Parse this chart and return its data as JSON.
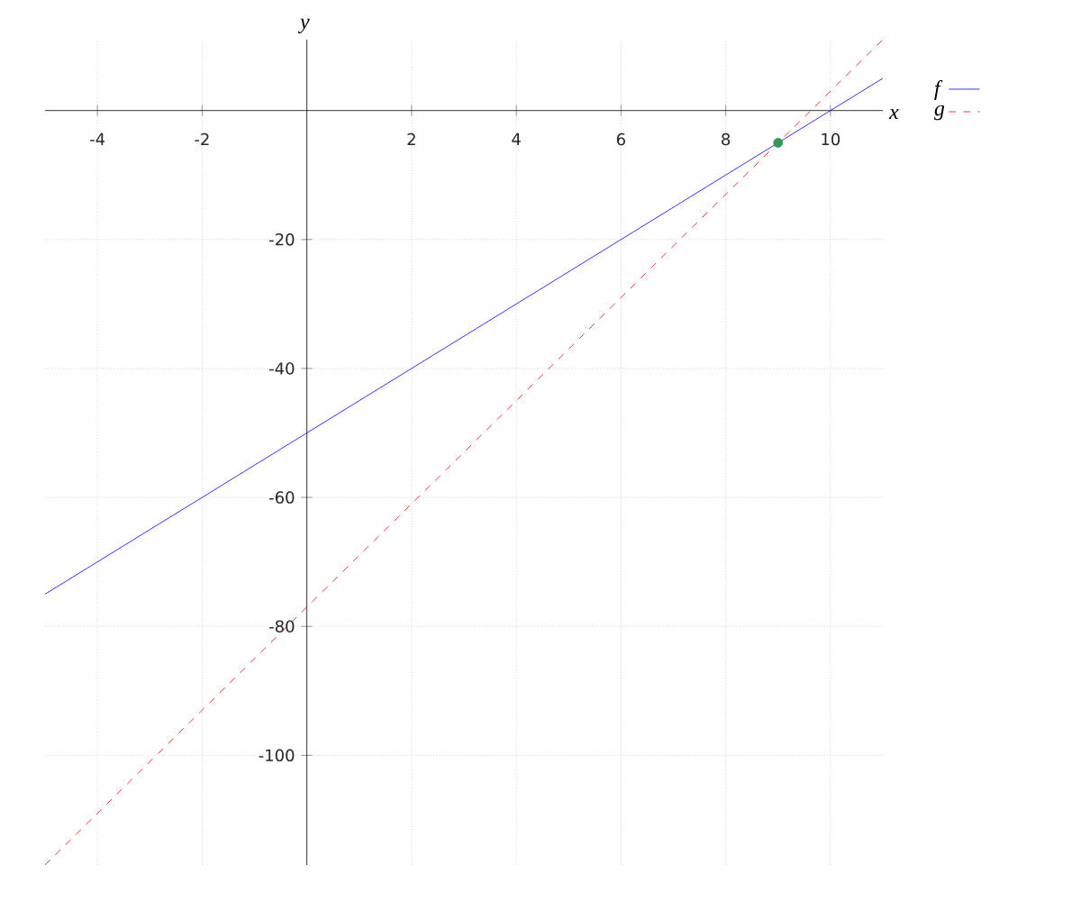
{
  "chart_data": {
    "type": "line",
    "xlabel": "x",
    "ylabel": "y",
    "xlim": [
      -5,
      11
    ],
    "ylim": [
      -117,
      11
    ],
    "xticks": [
      -4,
      -2,
      2,
      4,
      6,
      8,
      10
    ],
    "yticks": [
      -100,
      -80,
      -60,
      -40,
      -20
    ],
    "grid": true,
    "legend": "right",
    "series": [
      {
        "name": "f",
        "color": "#0000ff",
        "x": [
          -5,
          11
        ],
        "values": [
          -75,
          5
        ],
        "line_style": "solid"
      },
      {
        "name": "g",
        "color": "#ff0000",
        "x": [
          -5,
          11
        ],
        "values": [
          -117,
          11
        ],
        "line_style": "dashed"
      },
      {
        "type": "scatter",
        "color": "#339955",
        "x": [
          9
        ],
        "values": [
          -5
        ]
      }
    ]
  }
}
